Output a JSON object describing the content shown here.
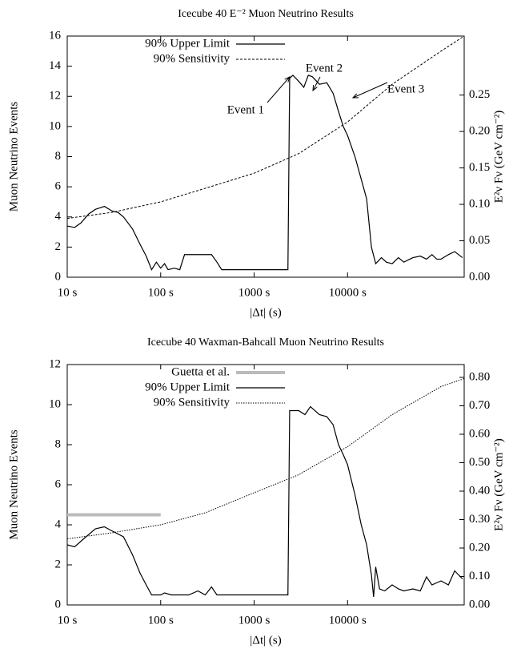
{
  "chart_data": [
    {
      "type": "line",
      "title": "Icecube 40 E⁻² Muon Neutrino Results",
      "xlabel": "|Δt| (s)",
      "ylabel": "Muon Neutrino Events",
      "y2label": "E²ν Fν (GeV cm⁻²)",
      "xscale": "log",
      "xlim": [
        10,
        177000
      ],
      "xticks": [
        {
          "value": 10,
          "label": "10 s"
        },
        {
          "value": 100,
          "label": "100 s"
        },
        {
          "value": 1000,
          "label": "1000 s"
        },
        {
          "value": 10000,
          "label": "10000 s"
        }
      ],
      "ylim": [
        0,
        16
      ],
      "yticks": [
        0,
        2,
        4,
        6,
        8,
        10,
        12,
        14,
        16
      ],
      "y2lim": [
        0,
        0.331
      ],
      "y2ticks": [
        {
          "value": 0,
          "label": "0.00"
        },
        {
          "value": 0.05,
          "label": "0.05"
        },
        {
          "value": 0.1,
          "label": "0.10"
        },
        {
          "value": 0.15,
          "label": "0.15"
        },
        {
          "value": 0.2,
          "label": "0.20"
        },
        {
          "value": 0.25,
          "label": "0.25"
        }
      ],
      "legend": "upper left",
      "annotations": [
        "Event 1",
        "Event 2",
        "Event 3"
      ],
      "series": [
        {
          "name": "90% Upper Limit",
          "color": "#000000",
          "dash": "solid",
          "x": [
            10,
            12,
            14,
            17,
            20,
            25,
            30,
            35,
            40,
            50,
            60,
            70,
            80,
            90,
            100,
            110,
            120,
            140,
            160,
            180,
            250,
            350,
            400,
            450,
            2300,
            2400,
            2600,
            3000,
            3400,
            3800,
            4200,
            5000,
            6000,
            7000,
            8000,
            9000,
            10000,
            12000,
            14000,
            16000,
            18000,
            20000,
            23000,
            26000,
            30000,
            35000,
            40000,
            50000,
            60000,
            70000,
            80000,
            90000,
            100000,
            120000,
            140000,
            170000
          ],
          "values": [
            3.4,
            3.3,
            3.6,
            4.2,
            4.5,
            4.7,
            4.4,
            4.3,
            4.0,
            3.2,
            2.2,
            1.4,
            0.5,
            1.0,
            0.6,
            0.9,
            0.5,
            0.6,
            0.5,
            1.5,
            1.5,
            1.5,
            1.0,
            0.5,
            0.5,
            13.2,
            13.4,
            13.0,
            12.6,
            13.4,
            13.3,
            12.8,
            12.9,
            12.2,
            11.0,
            10.0,
            9.4,
            8.0,
            6.5,
            5.2,
            2.0,
            0.9,
            1.3,
            1.0,
            0.9,
            1.3,
            1.0,
            1.3,
            1.4,
            1.2,
            1.5,
            1.2,
            1.2,
            1.5,
            1.7,
            1.3
          ]
        },
        {
          "name": "90% Sensitivity",
          "color": "#000000",
          "dash": "dashed",
          "x": [
            10,
            30,
            100,
            300,
            1000,
            3000,
            10000,
            30000,
            100000,
            177000
          ],
          "values": [
            3.9,
            4.3,
            5.0,
            5.9,
            6.9,
            8.2,
            10.3,
            12.8,
            15.0,
            16.0
          ]
        }
      ]
    },
    {
      "type": "line",
      "title": "Icecube 40 Waxman-Bahcall Muon Neutrino Results",
      "xlabel": "|Δt| (s)",
      "ylabel": "Muon Neutrino Events",
      "y2label": "E²ν Fν (GeV cm⁻²)",
      "xscale": "log",
      "xlim": [
        10,
        177000
      ],
      "xticks": [
        {
          "value": 10,
          "label": "10 s"
        },
        {
          "value": 100,
          "label": "100 s"
        },
        {
          "value": 1000,
          "label": "1000 s"
        },
        {
          "value": 10000,
          "label": "10000 s"
        }
      ],
      "ylim": [
        0,
        12
      ],
      "yticks": [
        0,
        2,
        4,
        6,
        8,
        10,
        12
      ],
      "y2lim": [
        0,
        0.845
      ],
      "y2ticks": [
        {
          "value": 0,
          "label": "0.00"
        },
        {
          "value": 0.1,
          "label": "0.10"
        },
        {
          "value": 0.2,
          "label": "0.20"
        },
        {
          "value": 0.3,
          "label": "0.30"
        },
        {
          "value": 0.4,
          "label": "0.40"
        },
        {
          "value": 0.5,
          "label": "0.50"
        },
        {
          "value": 0.6,
          "label": "0.60"
        },
        {
          "value": 0.7,
          "label": "0.70"
        },
        {
          "value": 0.8,
          "label": "0.80"
        }
      ],
      "legend": "upper left",
      "series": [
        {
          "name": "Guetta et al.",
          "color": "#bbbbbb",
          "dash": "thick",
          "x": [
            10,
            100
          ],
          "values": [
            4.5,
            4.5
          ]
        },
        {
          "name": "90% Upper Limit",
          "color": "#000000",
          "dash": "solid",
          "x": [
            10,
            12,
            15,
            20,
            25,
            30,
            40,
            50,
            60,
            70,
            80,
            100,
            110,
            130,
            200,
            250,
            300,
            350,
            400,
            2300,
            2400,
            3000,
            3500,
            4000,
            5000,
            6000,
            7000,
            8000,
            9000,
            10000,
            12000,
            14000,
            16000,
            18000,
            19000,
            20000,
            22000,
            25000,
            30000,
            35000,
            40000,
            50000,
            60000,
            70000,
            80000,
            100000,
            120000,
            140000,
            170000
          ],
          "values": [
            3.0,
            2.9,
            3.3,
            3.8,
            3.9,
            3.7,
            3.4,
            2.5,
            1.6,
            1.0,
            0.5,
            0.5,
            0.6,
            0.5,
            0.5,
            0.7,
            0.5,
            0.9,
            0.5,
            0.5,
            9.7,
            9.7,
            9.5,
            9.9,
            9.5,
            9.4,
            9.0,
            8.0,
            7.5,
            7.0,
            5.5,
            4.0,
            3.0,
            1.5,
            0.4,
            1.9,
            0.8,
            0.7,
            1.0,
            0.8,
            0.7,
            0.8,
            0.7,
            1.4,
            1.0,
            1.2,
            1.0,
            1.7,
            1.3
          ]
        },
        {
          "name": "90% Sensitivity",
          "color": "#000000",
          "dash": "dotted",
          "x": [
            10,
            30,
            100,
            300,
            1000,
            3000,
            10000,
            30000,
            100000,
            177000
          ],
          "values": [
            3.3,
            3.6,
            4.0,
            4.6,
            5.6,
            6.5,
            7.9,
            9.5,
            10.9,
            11.3
          ]
        }
      ]
    }
  ]
}
